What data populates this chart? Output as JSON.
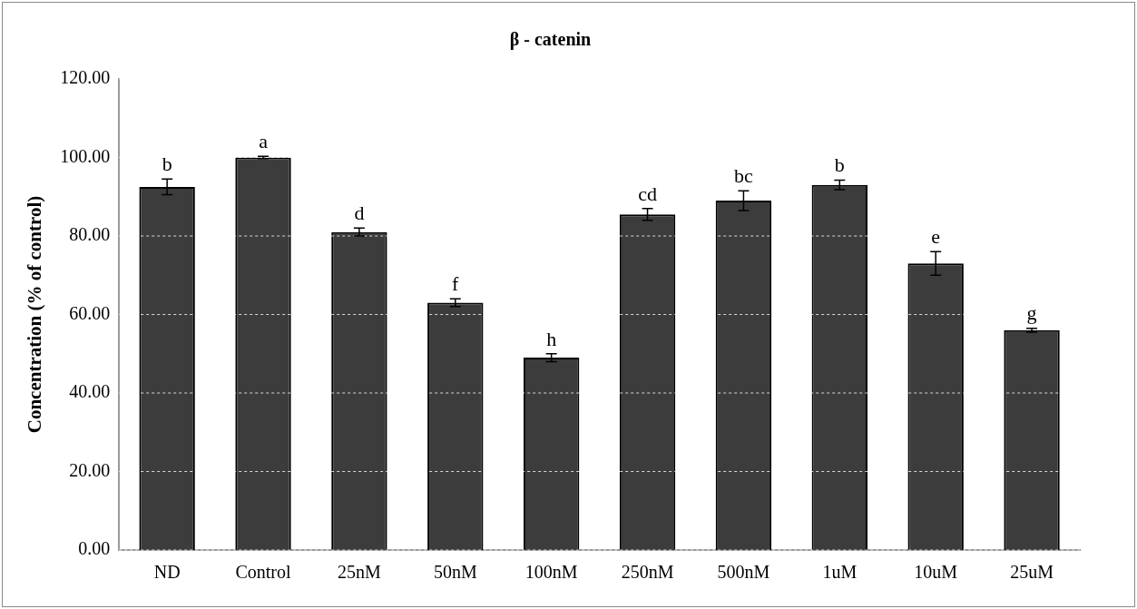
{
  "chart_data": {
    "type": "bar",
    "title": "β - catenin",
    "ylabel": "Concentration (% of control)",
    "categories": [
      "ND",
      "Control",
      "25nM",
      "50nM",
      "100nM",
      "250nM",
      "500nM",
      "1uM",
      "10uM",
      "25uM"
    ],
    "values": [
      92.5,
      100,
      81,
      63,
      49,
      85.5,
      89,
      93,
      73,
      56
    ],
    "errors": [
      2,
      0.3,
      1,
      1,
      1,
      1.5,
      2.5,
      1.2,
      3,
      0.5
    ],
    "color": "#3c3c3c",
    "ylim": [
      0,
      120
    ],
    "yticks": [
      {
        "value": 0,
        "label": "0.00"
      },
      {
        "value": 20,
        "label": "20.00"
      },
      {
        "value": 40,
        "label": "40.00"
      },
      {
        "value": 60,
        "label": "60.00"
      },
      {
        "value": 80,
        "label": "80.00"
      },
      {
        "value": 100,
        "label": "100.00"
      },
      {
        "value": 120,
        "label": "120.00"
      }
    ],
    "grid": "y",
    "legend": false,
    "annotations": [
      {
        "text": "b",
        "x": "ND",
        "y": 94.5
      },
      {
        "text": "a",
        "x": "Control",
        "y": 100.3
      },
      {
        "text": "d",
        "x": "25nM",
        "y": 82
      },
      {
        "text": "f",
        "x": "50nM",
        "y": 64
      },
      {
        "text": "h",
        "x": "100nM",
        "y": 50
      },
      {
        "text": "cd",
        "x": "250nM",
        "y": 87
      },
      {
        "text": "bc",
        "x": "500nM",
        "y": 91.5
      },
      {
        "text": "b",
        "x": "1uM",
        "y": 94.2
      },
      {
        "text": "e",
        "x": "10uM",
        "y": 76
      },
      {
        "text": "g",
        "x": "25uM",
        "y": 56.5
      }
    ]
  }
}
